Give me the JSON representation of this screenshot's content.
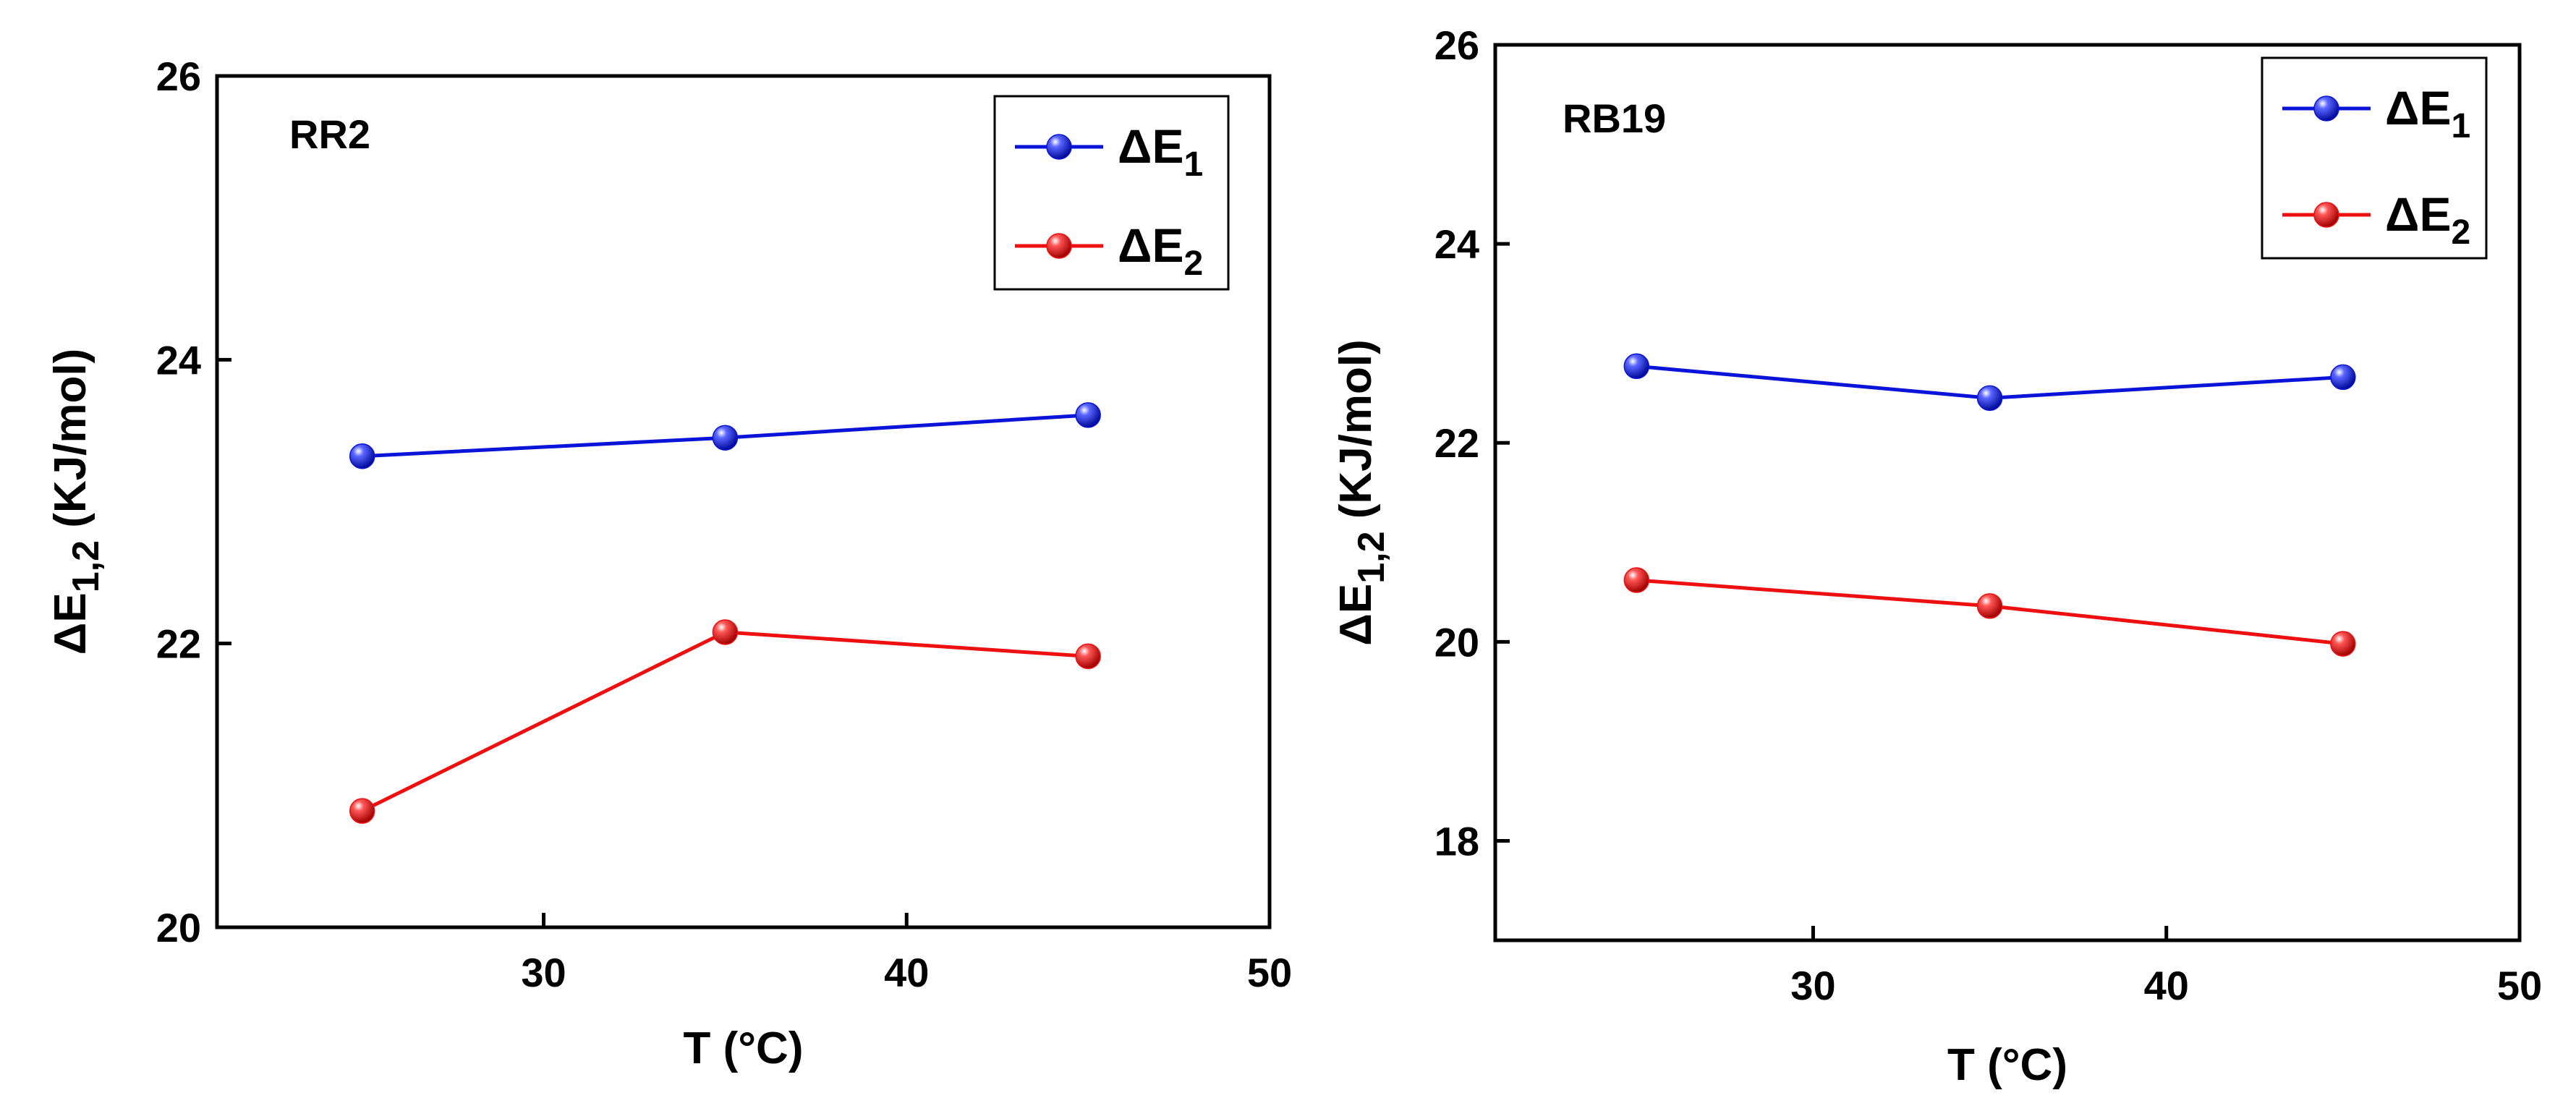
{
  "colors": {
    "series1": "#0a14d8",
    "series2": "#ee1010",
    "axis": "#000000",
    "background": "#ffffff"
  },
  "chart_data": [
    {
      "type": "line",
      "label": "RR2",
      "xlabel": "T (°C)",
      "ylabel": {
        "main": "ΔE",
        "sub": "1,2",
        "unit": " (KJ/mol)"
      },
      "xlim": [
        21,
        50
      ],
      "ylim": [
        20,
        26
      ],
      "xticks": [
        30,
        40,
        50
      ],
      "yticks": [
        20,
        22,
        24,
        26
      ],
      "legend_position": "top-right",
      "x": [
        25,
        35,
        45
      ],
      "series": [
        {
          "name": "ΔE1",
          "legend_main": "ΔE",
          "legend_sub": "1",
          "color": "#0a14d8",
          "values": [
            23.32,
            23.45,
            23.61
          ]
        },
        {
          "name": "ΔE2",
          "legend_main": "ΔE",
          "legend_sub": "2",
          "color": "#ee1010",
          "values": [
            20.82,
            22.08,
            21.91
          ]
        }
      ]
    },
    {
      "type": "line",
      "label": "RB19",
      "xlabel": "T (°C)",
      "ylabel": {
        "main": "ΔE",
        "sub": "1,2",
        "unit": " (KJ/mol)"
      },
      "xlim": [
        21,
        50
      ],
      "ylim": [
        17,
        26
      ],
      "xticks": [
        30,
        40,
        50
      ],
      "yticks": [
        18,
        20,
        22,
        24,
        26
      ],
      "legend_position": "top-right",
      "x": [
        25,
        35,
        45
      ],
      "series": [
        {
          "name": "ΔE1",
          "legend_main": "ΔE",
          "legend_sub": "1",
          "color": "#0a14d8",
          "values": [
            22.77,
            22.45,
            22.66
          ]
        },
        {
          "name": "ΔE2",
          "legend_main": "ΔE",
          "legend_sub": "2",
          "color": "#ee1010",
          "values": [
            20.62,
            20.36,
            19.98
          ]
        }
      ]
    }
  ]
}
